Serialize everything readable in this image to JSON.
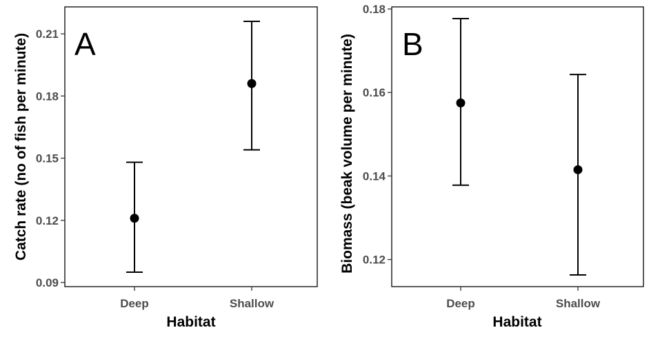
{
  "chart_data": [
    {
      "type": "scatter",
      "panel_label": "A",
      "title": "",
      "xlabel": "Habitat",
      "ylabel": "Catch rate (no of fish per minute)",
      "categories": [
        "Deep",
        "Shallow"
      ],
      "series": [
        {
          "values": [
            0.121,
            0.186
          ],
          "lower": [
            0.095,
            0.154
          ],
          "upper": [
            0.148,
            0.216
          ]
        }
      ],
      "ylim": [
        0.088,
        0.223
      ],
      "yticks": [
        0.09,
        0.12,
        0.15,
        0.18,
        0.21
      ],
      "ytick_labels": [
        "0.09",
        "0.12",
        "0.15",
        "0.18",
        "0.21"
      ],
      "grid": false,
      "legend": "none"
    },
    {
      "type": "scatter",
      "panel_label": "B",
      "title": "",
      "xlabel": "Habitat",
      "ylabel": "Biomass (beak volume per minute)",
      "categories": [
        "Deep",
        "Shallow"
      ],
      "series": [
        {
          "values": [
            0.1575,
            0.1415
          ],
          "lower": [
            0.1378,
            0.1163
          ],
          "upper": [
            0.1777,
            0.1643
          ]
        }
      ],
      "ylim": [
        0.1135,
        0.1805
      ],
      "yticks": [
        0.12,
        0.14,
        0.16,
        0.18
      ],
      "ytick_labels": [
        "0.12",
        "0.14",
        "0.16",
        "0.18"
      ],
      "grid": false,
      "legend": "none"
    }
  ]
}
